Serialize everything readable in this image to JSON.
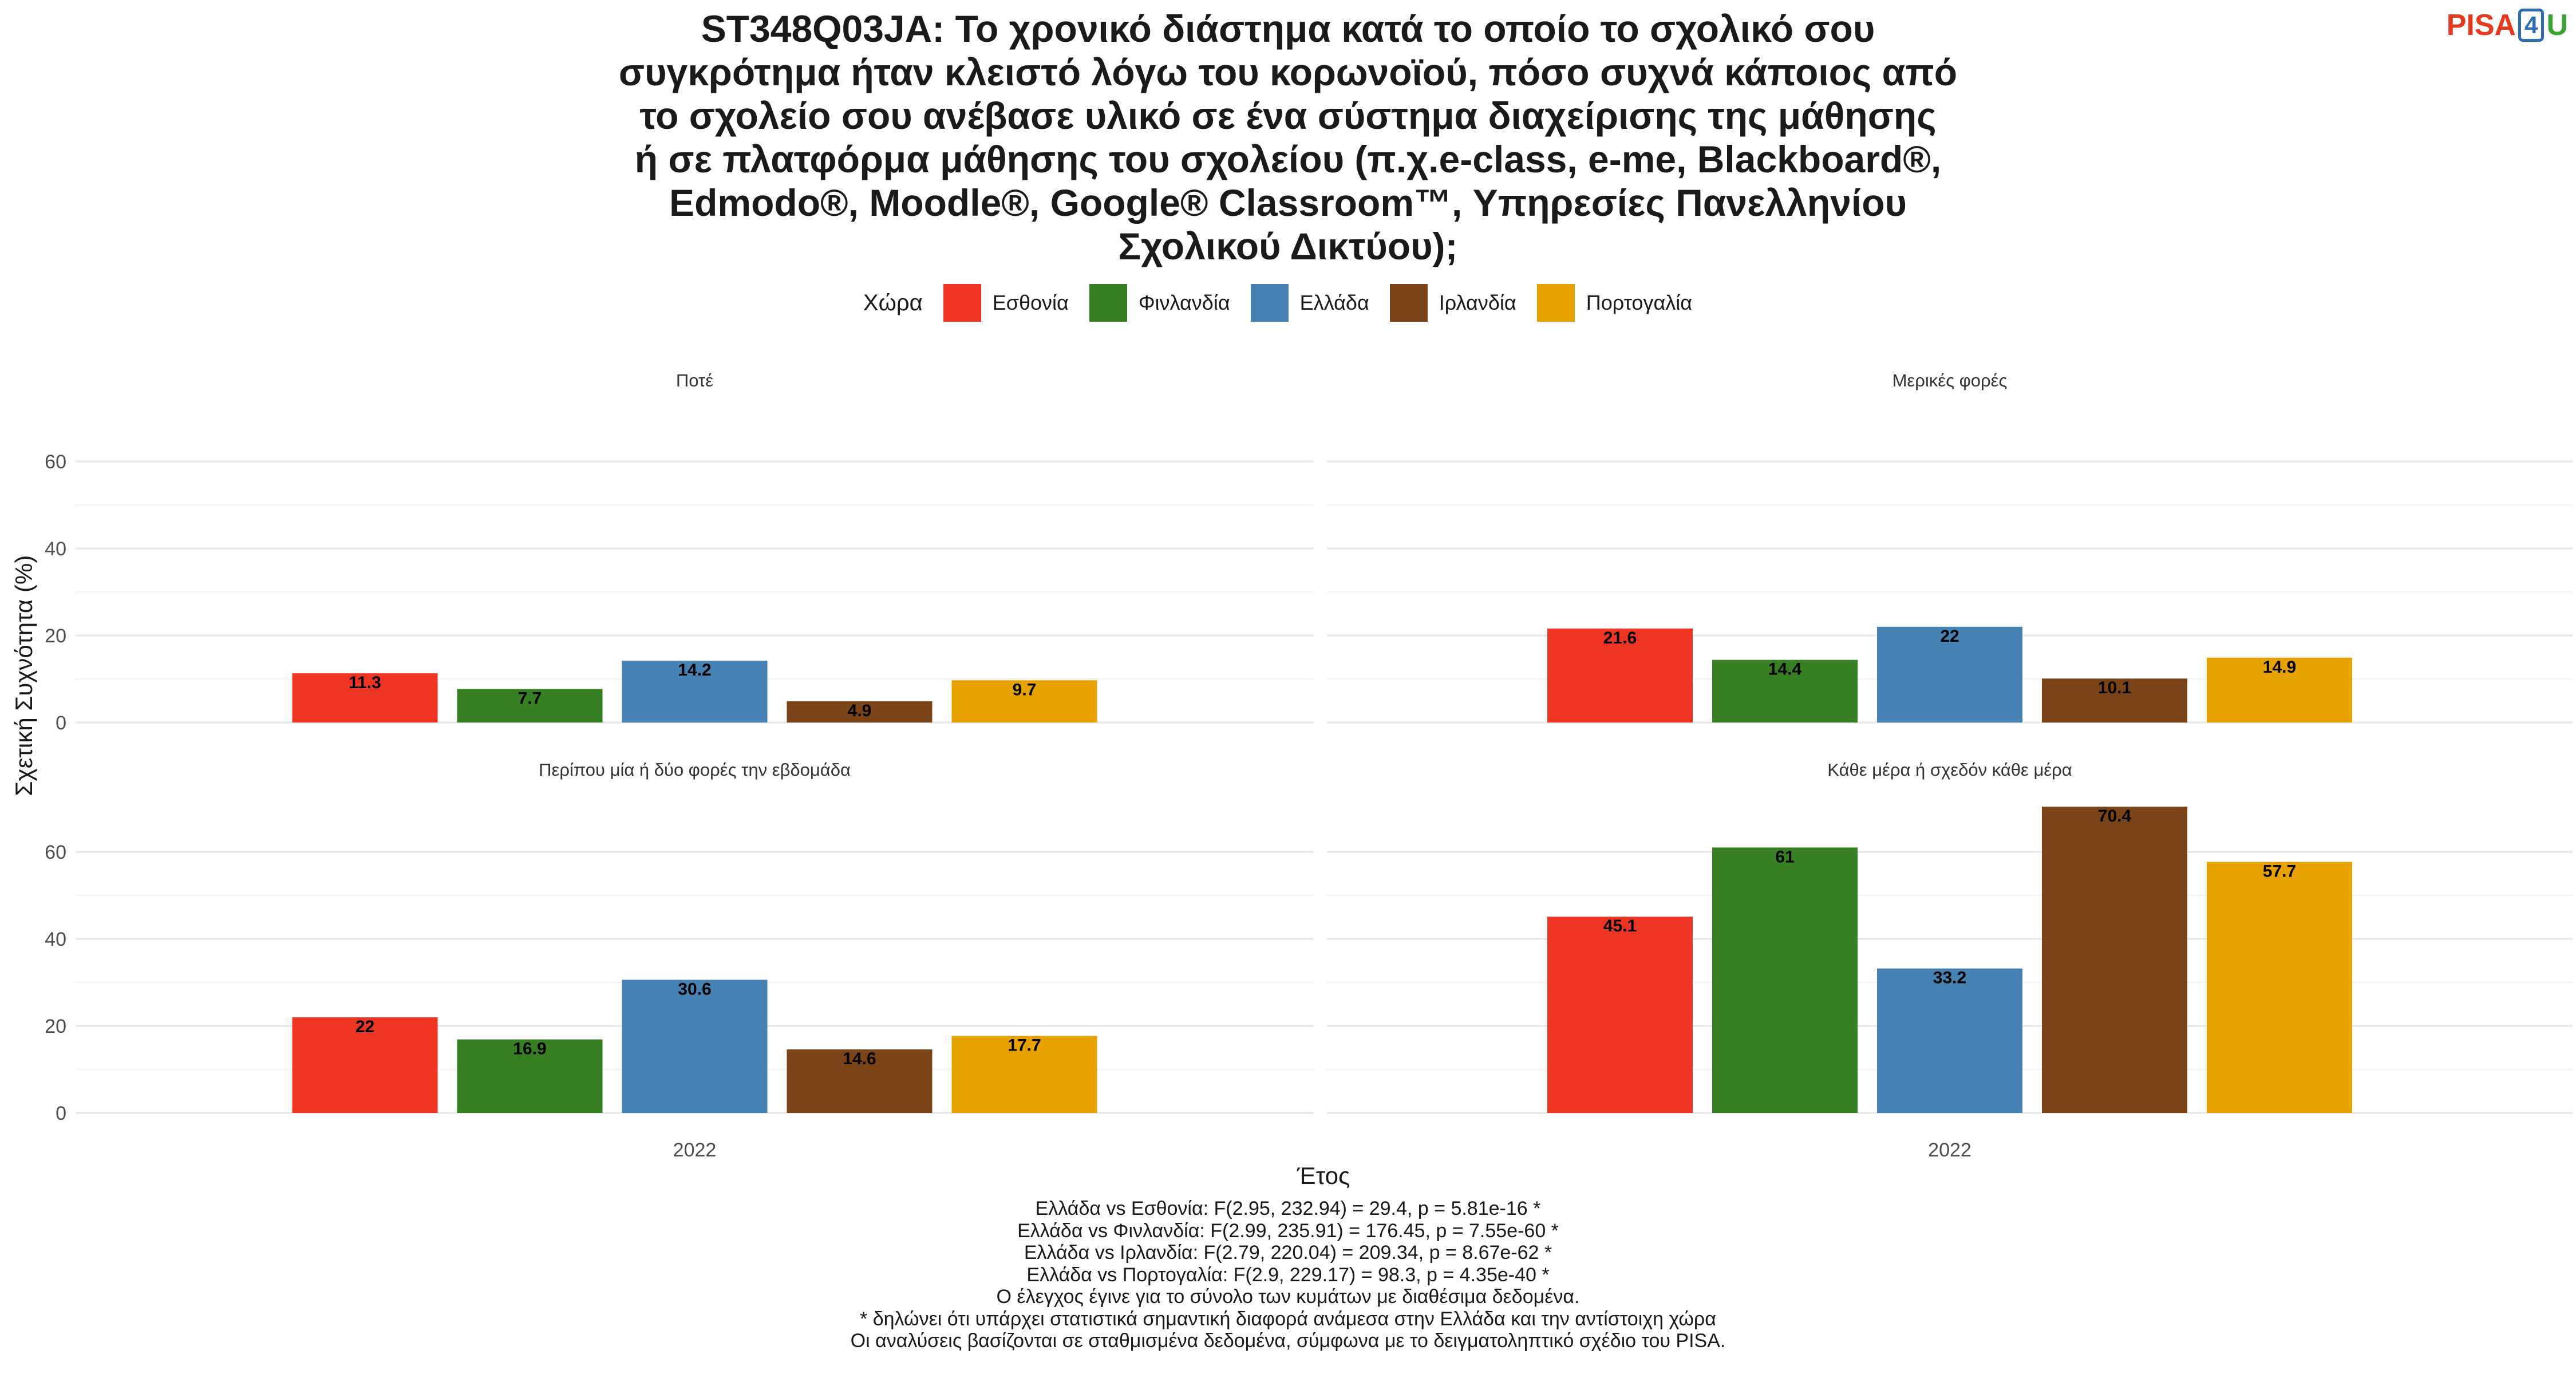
{
  "title_lines": [
    "ST348Q03JA: Το χρονικό διάστημα κατά το οποίο το σχολικό σου",
    "συγκρότημα ήταν κλειστό λόγω του κορωνοϊού, πόσο συχνά κάποιος από",
    "το σχολείο σου ανέβασε υλικό σε ένα σύστημα διαχείρισης της μάθησης",
    "ή σε πλατφόρμα μάθησης του σχολείου (π.χ.e-class, e-me, Blackboard®,",
    "Edmodo®, Moodle®, Google® Classroom™, Υπηρεσίες Πανελληνίου",
    "Σχολικού Δικτύου);"
  ],
  "logo": {
    "part1": "PISA",
    "part2": "4",
    "part3": "U"
  },
  "chart_data": {
    "type": "bar",
    "legend_title": "Χώρα",
    "legend_position": "top",
    "series": [
      {
        "name": "Εσθονία",
        "color": "#ee3524"
      },
      {
        "name": "Φινλανδία",
        "color": "#377f23"
      },
      {
        "name": "Ελλάδα",
        "color": "#4682b4"
      },
      {
        "name": "Ιρλανδία",
        "color": "#7b4418"
      },
      {
        "name": "Πορτογαλία",
        "color": "#e8a200"
      }
    ],
    "x_category": "2022",
    "xlabel": "Έτος",
    "ylabel": "Σχετική Συχνότητα (%)",
    "ylim": [
      0,
      60
    ],
    "yticks": [
      0,
      20,
      40,
      60
    ],
    "grid": true,
    "facets": [
      {
        "title": "Ποτέ",
        "values": [
          11.3,
          7.7,
          14.2,
          4.9,
          9.7
        ],
        "labels": [
          "11.3",
          "7.7",
          "14.2",
          "4.9",
          "9.7"
        ]
      },
      {
        "title": "Μερικές φορές",
        "values": [
          21.6,
          14.4,
          22,
          10.1,
          14.9
        ],
        "labels": [
          "21.6",
          "14.4",
          "22",
          "10.1",
          "14.9"
        ]
      },
      {
        "title": "Περίπου μία ή δύο φορές την εβδομάδα",
        "values": [
          22,
          16.9,
          30.6,
          14.6,
          17.7
        ],
        "labels": [
          "22",
          "16.9",
          "30.6",
          "14.6",
          "17.7"
        ]
      },
      {
        "title": "Κάθε μέρα ή σχεδόν κάθε μέρα",
        "values": [
          45.1,
          61,
          33.2,
          70.4,
          57.7
        ],
        "labels": [
          "45.1",
          "61",
          "33.2",
          "70.4",
          "57.7"
        ]
      }
    ]
  },
  "footnotes": [
    "Ελλάδα vs Εσθονία: F(2.95, 232.94) = 29.4, p = 5.81e-16 *",
    "Ελλάδα vs Φινλανδία: F(2.99, 235.91) = 176.45, p = 7.55e-60 *",
    "Ελλάδα vs Ιρλανδία: F(2.79, 220.04) = 209.34, p = 8.67e-62 *",
    "Ελλάδα vs Πορτογαλία: F(2.9, 229.17) = 98.3, p = 4.35e-40 *",
    "Ο έλεγχος έγινε για το σύνολο των κυμάτων με διαθέσιμα δεδομένα.",
    "* δηλώνει ότι υπάρχει στατιστικά σημαντική διαφορά ανάμεσα στην Ελλάδα και την αντίστοιχη χώρα",
    "Οι αναλύσεις βασίζονται σε σταθμισμένα δεδομένα, σύμφωνα με το δειγματοληπτικό σχέδιο του PISA."
  ]
}
